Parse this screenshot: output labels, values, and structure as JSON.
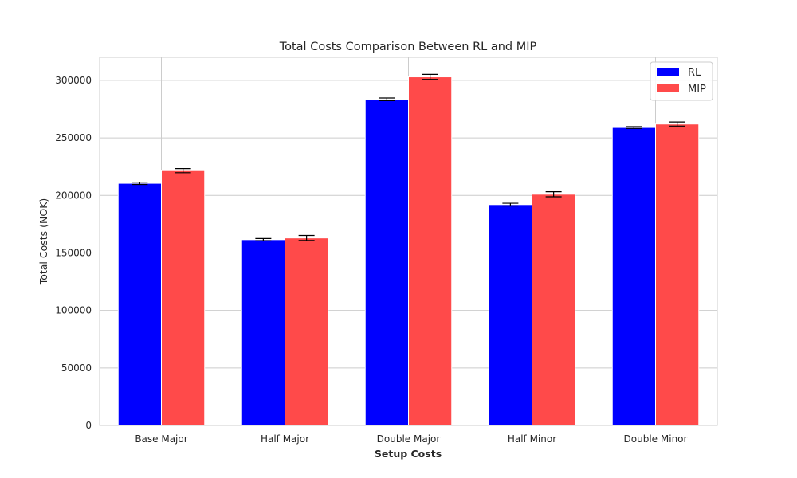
{
  "chart_data": {
    "type": "bar",
    "title": "Total Costs Comparison Between RL and MIP",
    "xlabel": "Setup Costs",
    "ylabel": "Total Costs (NOK)",
    "categories": [
      "Base Major",
      "Half Major",
      "Double Major",
      "Half Minor",
      "Double Minor"
    ],
    "ylim": [
      0,
      320000
    ],
    "yticks": [
      0,
      50000,
      100000,
      150000,
      200000,
      250000,
      300000
    ],
    "ytick_labels": [
      "0",
      "50000",
      "100000",
      "150000",
      "200000",
      "250000",
      "300000"
    ],
    "grid": true,
    "legend_position": "top-right",
    "series": [
      {
        "name": "RL",
        "color": "#0000ff",
        "values": [
          210500,
          161500,
          283500,
          192000,
          259000
        ],
        "errors": [
          1000,
          1000,
          1200,
          1200,
          800
        ]
      },
      {
        "name": "MIP",
        "color": "#ff4a4a",
        "values": [
          221500,
          163000,
          303000,
          201000,
          262000
        ],
        "errors": [
          1800,
          2200,
          2200,
          2200,
          1800
        ]
      }
    ]
  }
}
